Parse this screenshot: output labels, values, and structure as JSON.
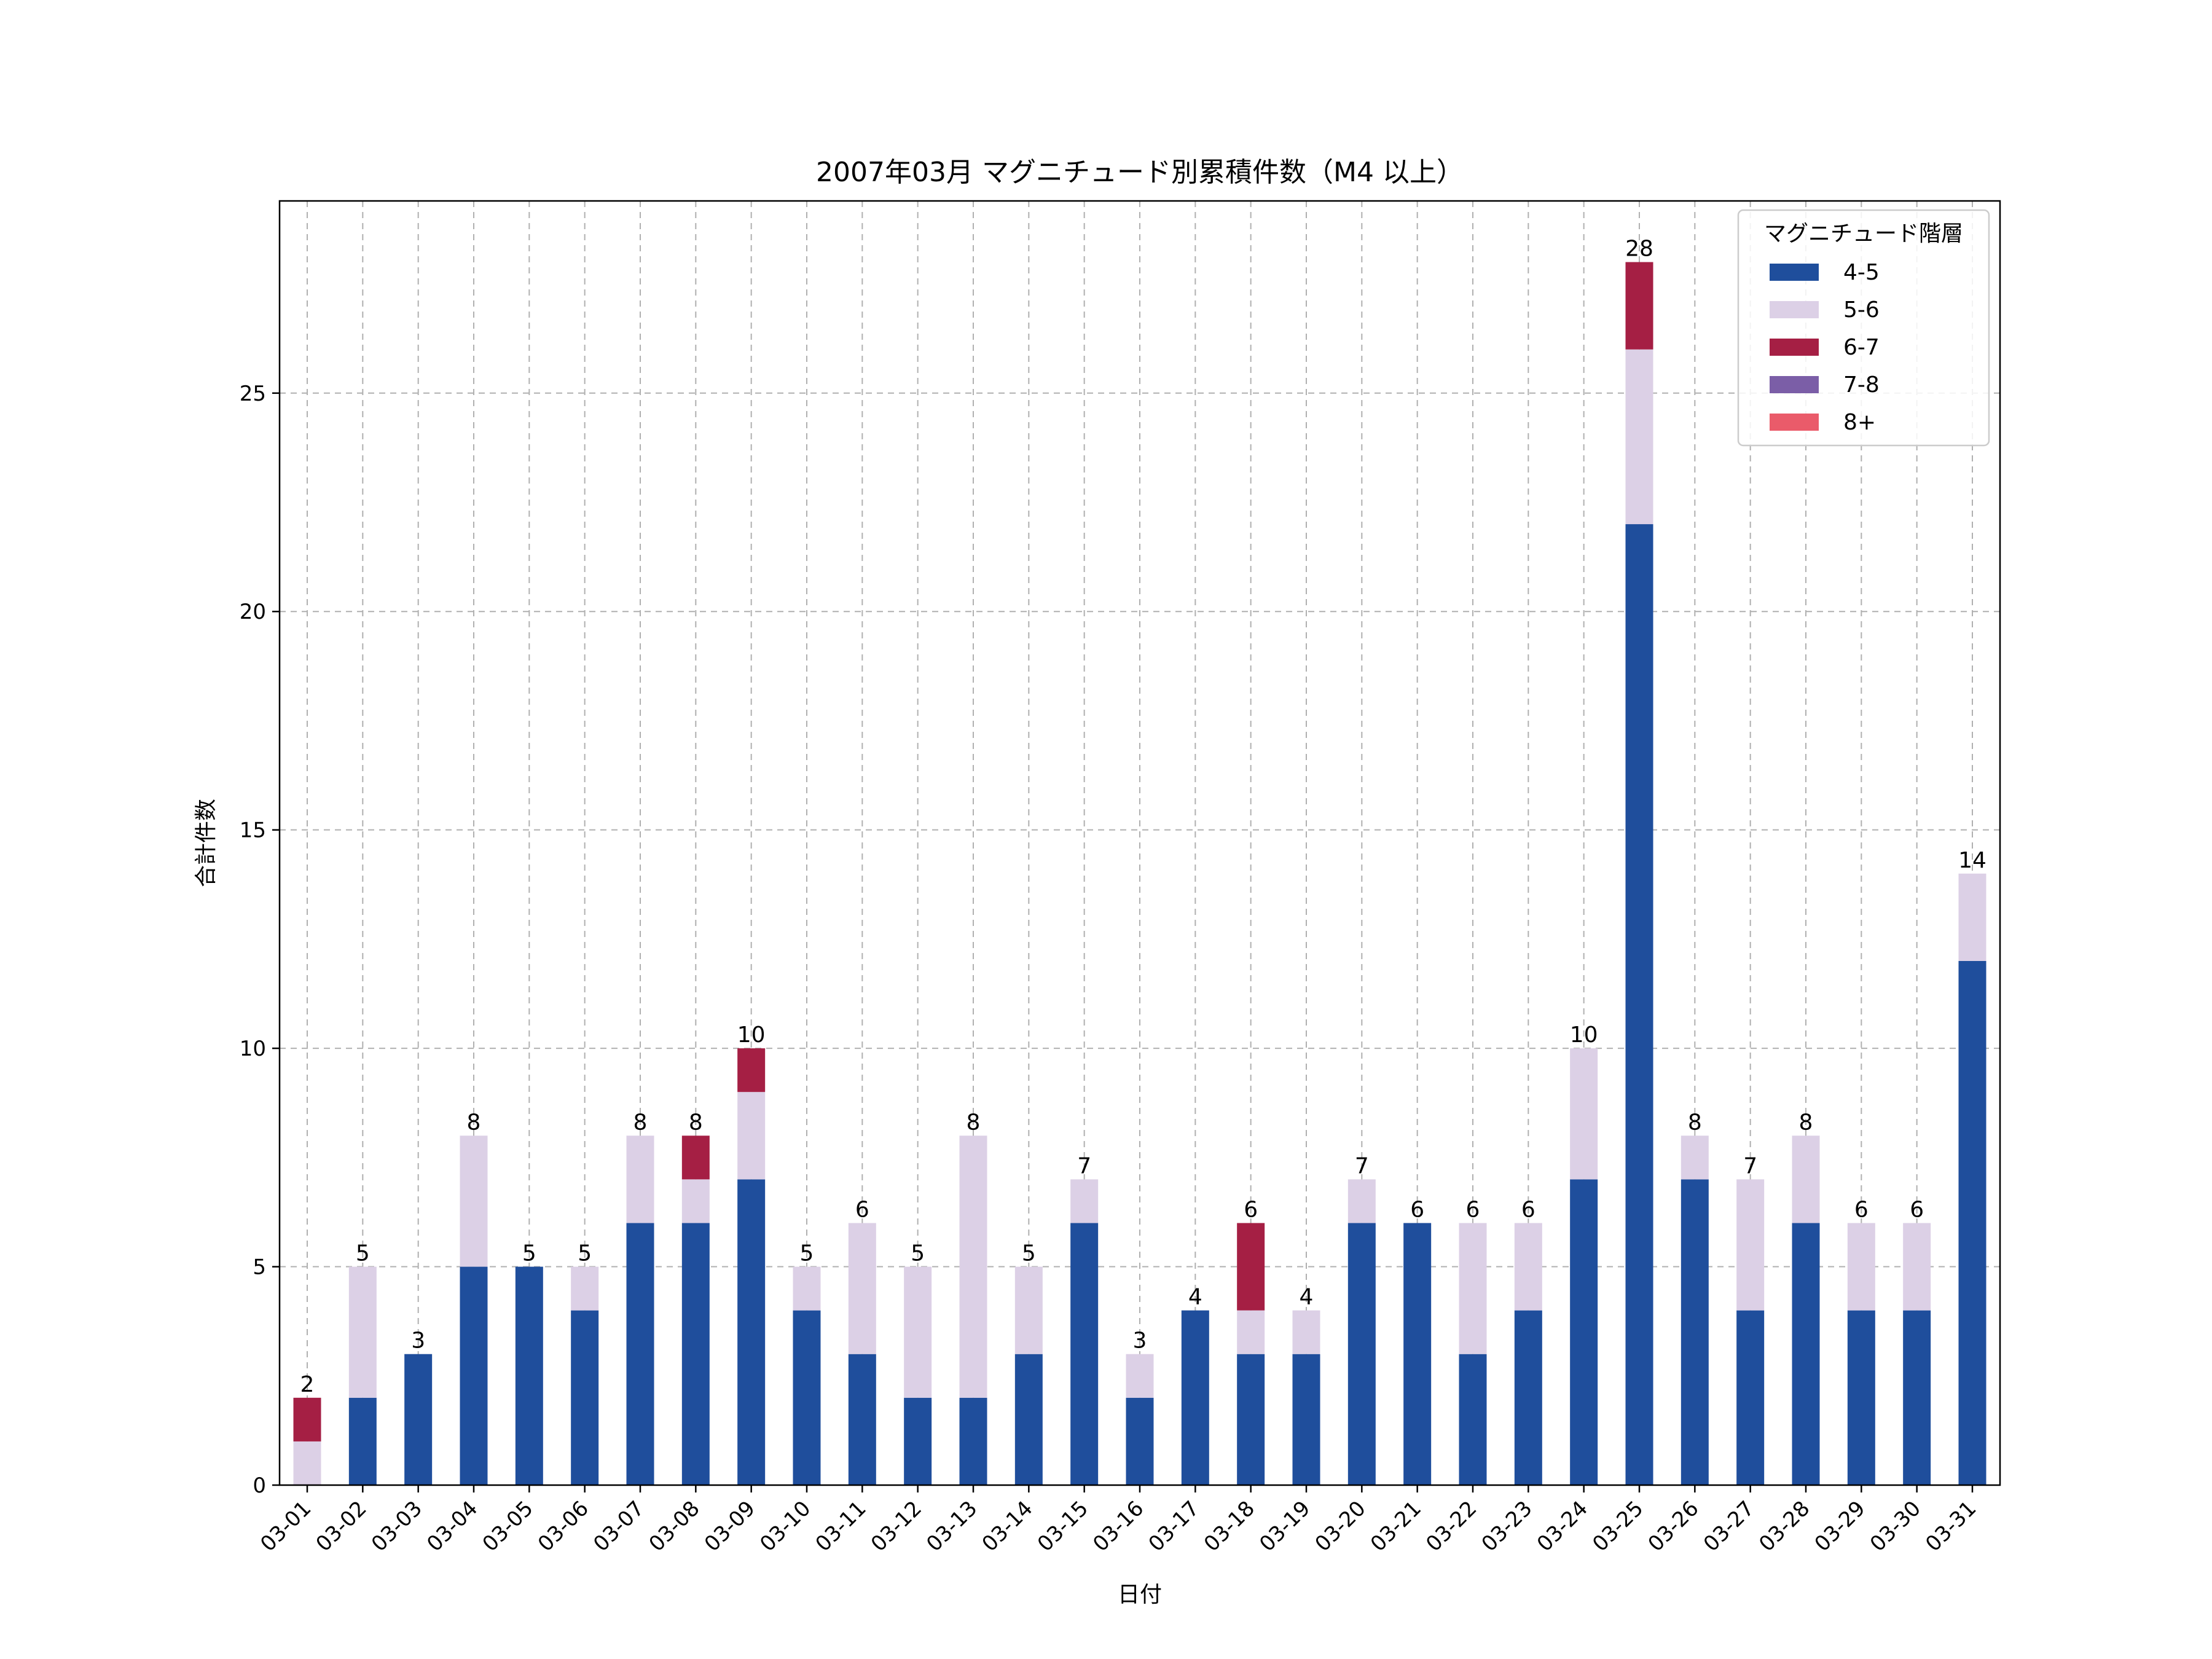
{
  "chart_data": {
    "type": "bar",
    "stacked": true,
    "title": "2007年03月 マグニチュード別累積件数（M4 以上）",
    "xlabel": "日付",
    "ylabel": "合計件数",
    "ylim": [
      0,
      29.4
    ],
    "yticks": [
      0,
      5,
      10,
      15,
      20,
      25
    ],
    "grid": true,
    "legend_title": "マグニチュード階層",
    "legend_position": "top-right",
    "categories": [
      "03-01",
      "03-02",
      "03-03",
      "03-04",
      "03-05",
      "03-06",
      "03-07",
      "03-08",
      "03-09",
      "03-10",
      "03-11",
      "03-12",
      "03-13",
      "03-14",
      "03-15",
      "03-16",
      "03-17",
      "03-18",
      "03-19",
      "03-20",
      "03-21",
      "03-22",
      "03-23",
      "03-24",
      "03-25",
      "03-26",
      "03-27",
      "03-28",
      "03-29",
      "03-30",
      "03-31"
    ],
    "series": [
      {
        "name": "4-5",
        "color": "#1f4e9c",
        "values": [
          0,
          2,
          3,
          5,
          5,
          4,
          6,
          6,
          7,
          4,
          3,
          2,
          2,
          3,
          6,
          2,
          4,
          3,
          3,
          6,
          6,
          3,
          4,
          7,
          22,
          7,
          4,
          6,
          4,
          4,
          12
        ]
      },
      {
        "name": "5-6",
        "color": "#dcd0e6",
        "values": [
          1,
          3,
          0,
          3,
          0,
          1,
          2,
          1,
          2,
          1,
          3,
          3,
          6,
          2,
          1,
          1,
          0,
          1,
          1,
          1,
          0,
          3,
          2,
          3,
          4,
          1,
          3,
          2,
          2,
          2,
          2
        ]
      },
      {
        "name": "6-7",
        "color": "#a51f44",
        "values": [
          1,
          0,
          0,
          0,
          0,
          0,
          0,
          1,
          1,
          0,
          0,
          0,
          0,
          0,
          0,
          0,
          0,
          2,
          0,
          0,
          0,
          0,
          0,
          0,
          2,
          0,
          0,
          0,
          0,
          0,
          0
        ]
      },
      {
        "name": "7-8",
        "color": "#7b5ea7",
        "values": [
          0,
          0,
          0,
          0,
          0,
          0,
          0,
          0,
          0,
          0,
          0,
          0,
          0,
          0,
          0,
          0,
          0,
          0,
          0,
          0,
          0,
          0,
          0,
          0,
          0,
          0,
          0,
          0,
          0,
          0,
          0
        ]
      },
      {
        "name": "8+",
        "color": "#ea5b6a",
        "values": [
          0,
          0,
          0,
          0,
          0,
          0,
          0,
          0,
          0,
          0,
          0,
          0,
          0,
          0,
          0,
          0,
          0,
          0,
          0,
          0,
          0,
          0,
          0,
          0,
          0,
          0,
          0,
          0,
          0,
          0,
          0
        ]
      }
    ],
    "totals": [
      2,
      5,
      3,
      8,
      5,
      5,
      8,
      8,
      10,
      5,
      6,
      5,
      8,
      5,
      7,
      3,
      4,
      6,
      4,
      7,
      6,
      6,
      6,
      10,
      28,
      8,
      7,
      8,
      6,
      6,
      14
    ]
  }
}
